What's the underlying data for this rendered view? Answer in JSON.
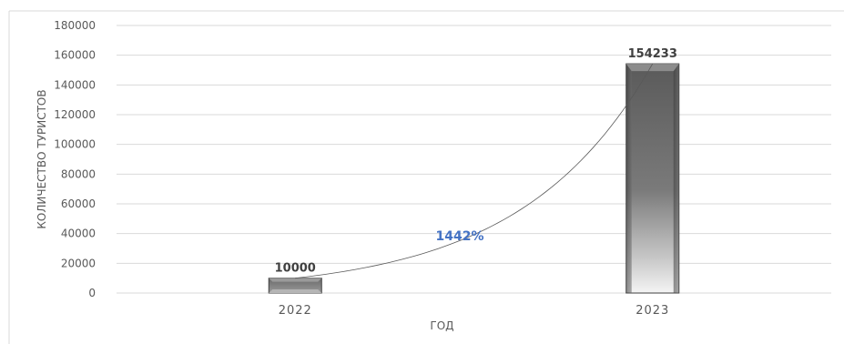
{
  "chart_data": {
    "type": "bar",
    "categories": [
      "2022",
      "2023"
    ],
    "series": [
      {
        "values": [
          10000,
          154233
        ]
      }
    ],
    "data_labels": [
      "10000",
      "154233"
    ],
    "xlabel": "ГОД",
    "ylabel": "КОЛИЧЕСТВО ТУРИСТОВ",
    "ylim": [
      0,
      180000
    ],
    "yticks": [
      0,
      20000,
      40000,
      60000,
      80000,
      100000,
      120000,
      140000,
      160000,
      180000
    ],
    "grid": true,
    "trendline": "exponential",
    "annotations": [
      {
        "text": "1442%",
        "color": "#4472c4"
      }
    ],
    "bar_color": "#6e6e6e"
  }
}
